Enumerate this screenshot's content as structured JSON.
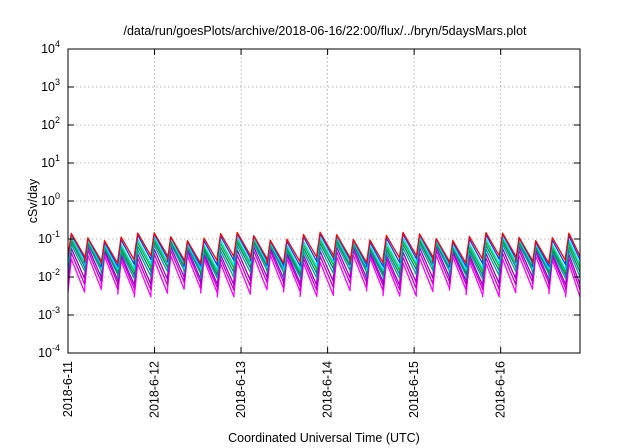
{
  "chart_data": {
    "type": "line",
    "title": "/data/run/goesPlots/archive/2018-06-16/22:00/flux/../bryn/5daysMars.plot",
    "xlabel": "Coordinated Universal Time (UTC)",
    "ylabel": "cSv/day",
    "yscale": "log",
    "ylim": [
      0.0001,
      10000
    ],
    "xlim": [
      "2018-06-11T00:00",
      "2018-06-16T22:00"
    ],
    "grid": true,
    "x_tick_labels": [
      "2018-6-11",
      "2018-6-12",
      "2018-6-13",
      "2018-6-14",
      "2018-6-15",
      "2018-6-16"
    ],
    "y_ticks": [
      {
        "base": "10",
        "exp": "-4"
      },
      {
        "base": "10",
        "exp": "-3"
      },
      {
        "base": "10",
        "exp": "-2"
      },
      {
        "base": "10",
        "exp": "-1"
      },
      {
        "base": "10",
        "exp": "0"
      },
      {
        "base": "10",
        "exp": "1"
      },
      {
        "base": "10",
        "exp": "2"
      },
      {
        "base": "10",
        "exp": "3"
      },
      {
        "base": "10",
        "exp": "4"
      }
    ],
    "sawtooth_period_hours": 4.6,
    "series": [
      {
        "color": "#ff00ff",
        "peak": 0.03,
        "trough": 0.004
      },
      {
        "color": "#cc00cc",
        "peak": 0.04,
        "trough": 0.006
      },
      {
        "color": "#9900cc",
        "peak": 0.05,
        "trough": 0.008
      },
      {
        "color": "#00a0a0",
        "peak": 0.06,
        "trough": 0.012
      },
      {
        "color": "#008080",
        "peak": 0.07,
        "trough": 0.015
      },
      {
        "color": "#00c000",
        "peak": 0.08,
        "trough": 0.018
      },
      {
        "color": "#00e0ff",
        "peak": 0.09,
        "trough": 0.02
      },
      {
        "color": "#0040ff",
        "peak": 0.11,
        "trough": 0.025
      },
      {
        "color": "#ff0000",
        "peak": 0.12,
        "trough": 0.03
      }
    ]
  }
}
